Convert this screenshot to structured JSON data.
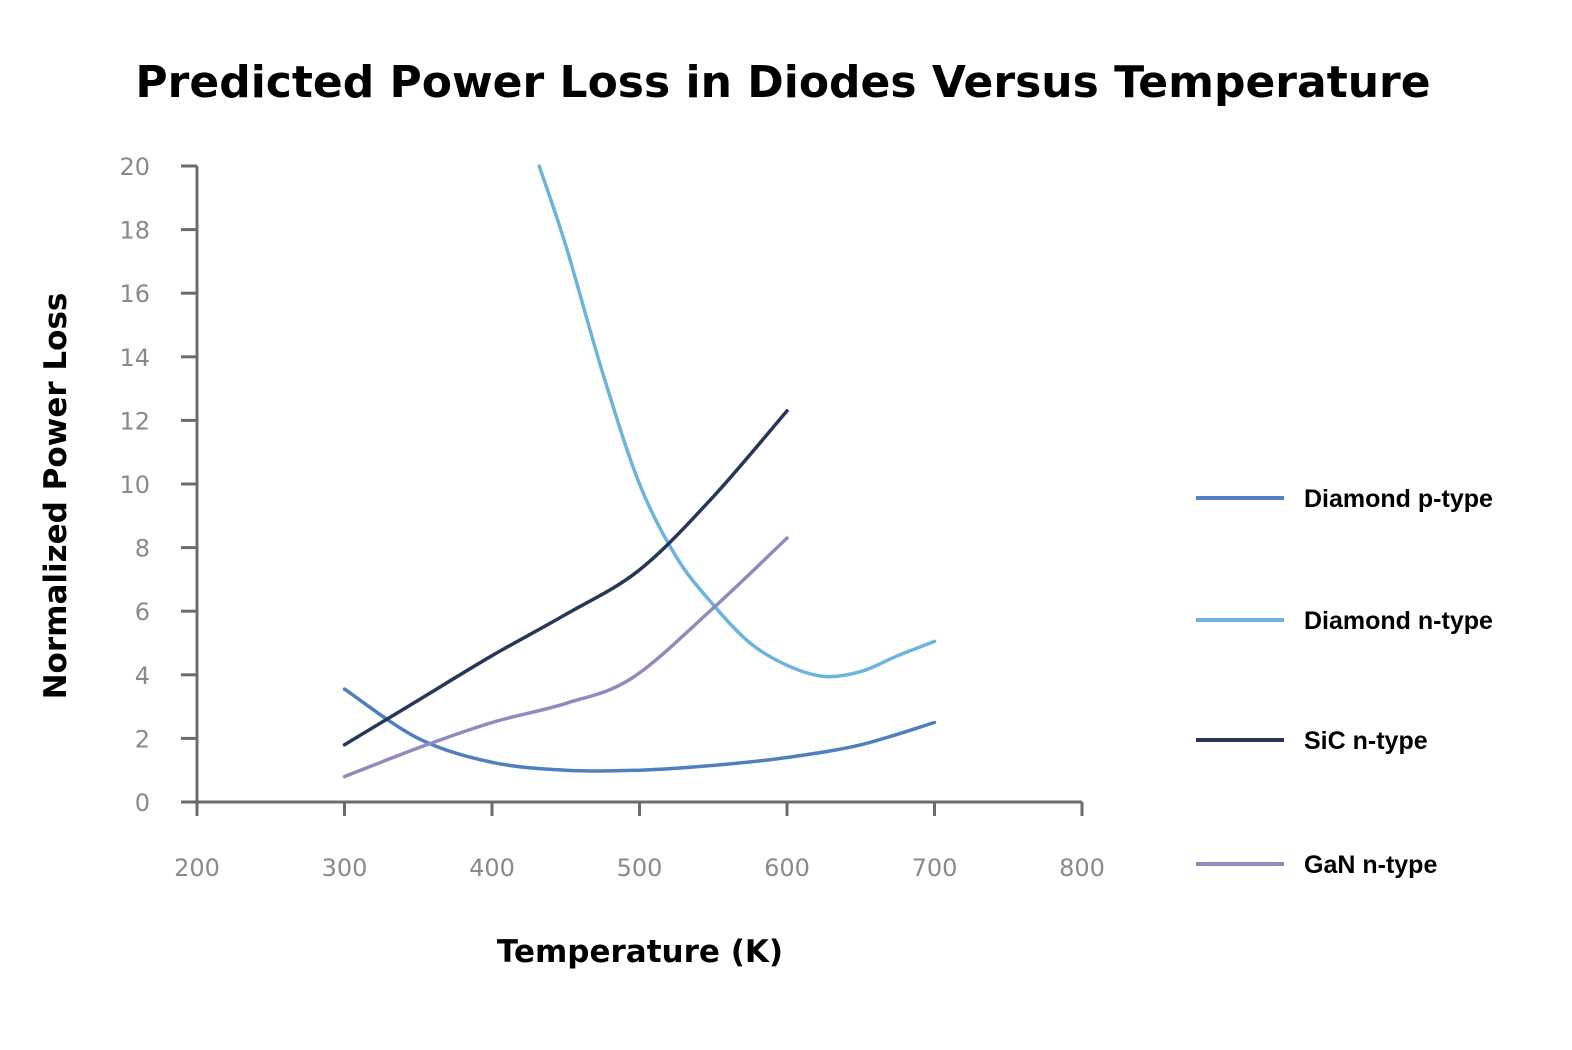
{
  "chart_data": {
    "type": "line",
    "title": "Predicted Power Loss in Diodes Versus Temperature",
    "xlabel": "Temperature (K)",
    "ylabel": "Normalized Power Loss",
    "xlim": [
      200,
      800
    ],
    "ylim": [
      0,
      20
    ],
    "x_ticks": [
      "200",
      "300",
      "400",
      "500",
      "600",
      "700",
      "800"
    ],
    "y_ticks": [
      "0",
      "2",
      "4",
      "6",
      "8",
      "10",
      "12",
      "14",
      "16",
      "18",
      "20"
    ],
    "x_tick_values": [
      200,
      300,
      400,
      500,
      600,
      700,
      800
    ],
    "y_tick_values": [
      0,
      2,
      4,
      6,
      8,
      10,
      12,
      14,
      16,
      18,
      20
    ],
    "grid": false,
    "legend_position": "right",
    "series": [
      {
        "name": "Diamond p-type",
        "color": "#4f7fbe",
        "points": [
          [
            300,
            3.55
          ],
          [
            350,
            2.0
          ],
          [
            400,
            1.25
          ],
          [
            450,
            1.0
          ],
          [
            500,
            1.0
          ],
          [
            550,
            1.15
          ],
          [
            600,
            1.4
          ],
          [
            650,
            1.8
          ],
          [
            700,
            2.5
          ]
        ]
      },
      {
        "name": "Diamond n-type",
        "color": "#6cb4dc",
        "points": [
          [
            432,
            20.0
          ],
          [
            450,
            17.5
          ],
          [
            475,
            13.5
          ],
          [
            500,
            10.0
          ],
          [
            525,
            7.7
          ],
          [
            550,
            6.2
          ],
          [
            575,
            5.0
          ],
          [
            600,
            4.3
          ],
          [
            625,
            3.95
          ],
          [
            650,
            4.1
          ],
          [
            675,
            4.6
          ],
          [
            700,
            5.05
          ]
        ]
      },
      {
        "name": "SiC n-type",
        "color": "#27375a",
        "points": [
          [
            300,
            1.8
          ],
          [
            350,
            3.2
          ],
          [
            400,
            4.6
          ],
          [
            450,
            5.9
          ],
          [
            500,
            7.3
          ],
          [
            550,
            9.6
          ],
          [
            600,
            12.3
          ]
        ]
      },
      {
        "name": "GaN n-type",
        "color": "#8f8bbd",
        "points": [
          [
            300,
            0.8
          ],
          [
            350,
            1.7
          ],
          [
            400,
            2.5
          ],
          [
            450,
            3.1
          ],
          [
            495,
            3.9
          ],
          [
            550,
            6.1
          ],
          [
            600,
            8.3
          ]
        ]
      }
    ]
  }
}
